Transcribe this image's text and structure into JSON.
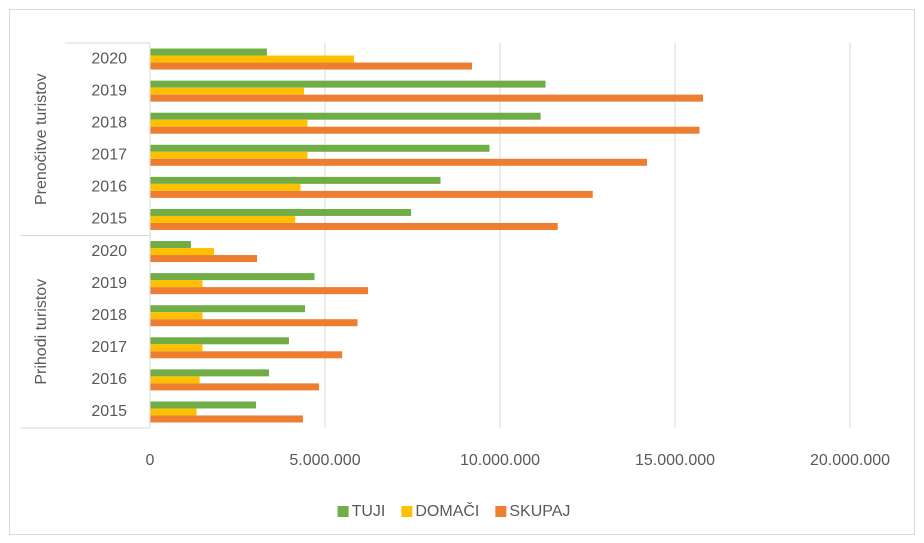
{
  "chart_data": {
    "type": "hbar",
    "category_groups": [
      "Prenočitve turistov",
      "Prihodi turistov"
    ],
    "categories": [
      "2020",
      "2019",
      "2018",
      "2017",
      "2016",
      "2015",
      "2020",
      "2019",
      "2018",
      "2017",
      "2016",
      "2015"
    ],
    "series": [
      {
        "name": "TUJI",
        "color": "#70ad47",
        "values": [
          3340000,
          11300000,
          11160000,
          9700000,
          8300000,
          7460000,
          1170000,
          4700000,
          4430000,
          3970000,
          3400000,
          3030000
        ]
      },
      {
        "name": "DOMAČI",
        "color": "#ffc000",
        "values": [
          5830000,
          4400000,
          4500000,
          4500000,
          4300000,
          4150000,
          1830000,
          1500000,
          1500000,
          1500000,
          1420000,
          1330000
        ]
      },
      {
        "name": "SKUPAJ",
        "color": "#ed7d31",
        "values": [
          9200000,
          15800000,
          15700000,
          14200000,
          12650000,
          11650000,
          3060000,
          6230000,
          5930000,
          5490000,
          4830000,
          4370000
        ]
      }
    ],
    "xlim": [
      0,
      20000000
    ],
    "xticks": [
      0,
      {
        "value": 5000000,
        "label": "5.000.000"
      },
      {
        "value": 10000000,
        "label": "10.000.000"
      },
      {
        "value": 15000000,
        "label": "15.000.000"
      },
      {
        "value": 20000000,
        "label": "20.000.000"
      }
    ],
    "grid": true,
    "legend": "bottom"
  }
}
